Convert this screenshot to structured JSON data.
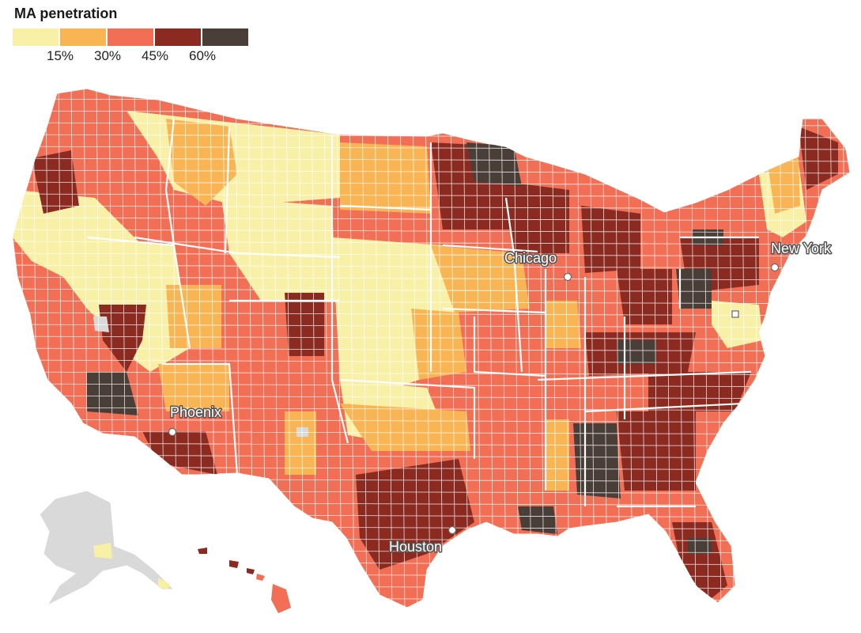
{
  "legend": {
    "title": "MA penetration",
    "colors": [
      "#f7f0a6",
      "#f9b553",
      "#f26e55",
      "#8a2a20",
      "#4a3e38"
    ],
    "ticks": [
      "15%",
      "30%",
      "45%",
      "60%"
    ]
  },
  "map": {
    "missing_color": "#d9d9d9",
    "border_color": "#ffffff"
  },
  "cities": [
    {
      "name": "Chicago",
      "marker": "circle"
    },
    {
      "name": "New York",
      "marker": "circle"
    },
    {
      "name": "Phoenix",
      "marker": "circle"
    },
    {
      "name": "Houston",
      "marker": "circle"
    },
    {
      "name": "",
      "marker": "square"
    }
  ]
}
